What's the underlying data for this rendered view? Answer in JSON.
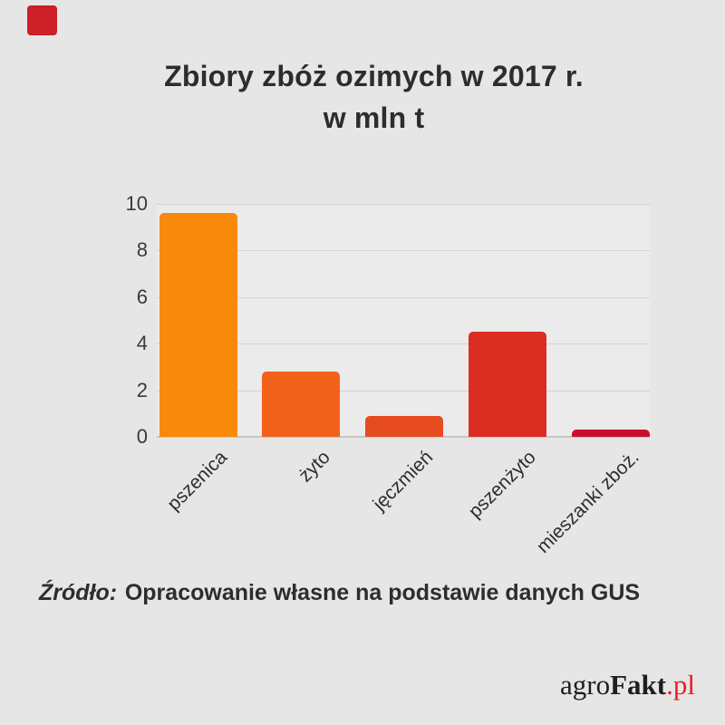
{
  "brand": {
    "square_color": "#cb2026",
    "logo": {
      "part1": "agro",
      "part2": "Fakt",
      "part3": ".pl",
      "accent_color": "#ee1b24"
    }
  },
  "title": {
    "line1": "Zbiory zbóż ozimych w 2017 r.",
    "line2": "w mln t"
  },
  "source": {
    "prefix": "Źródło:",
    "text": "Opracowanie własne na podstawie danych GUS"
  },
  "chart_data": {
    "type": "bar",
    "title": "Zbiory zbóż ozimych w 2017 r. w mln t",
    "categories": [
      "pszenica",
      "żyto",
      "jęczmień",
      "pszenżyto",
      "mieszanki zboż."
    ],
    "values": [
      9.6,
      2.8,
      0.9,
      4.5,
      0.3
    ],
    "bar_colors": [
      "#f8890a",
      "#f2611a",
      "#e74b20",
      "#db2d21",
      "#c8102e"
    ],
    "xlabel": "",
    "ylabel": "",
    "ylim": [
      0,
      10
    ],
    "yticks": [
      0,
      2,
      4,
      6,
      8,
      10
    ],
    "grid": true,
    "legend": false
  }
}
